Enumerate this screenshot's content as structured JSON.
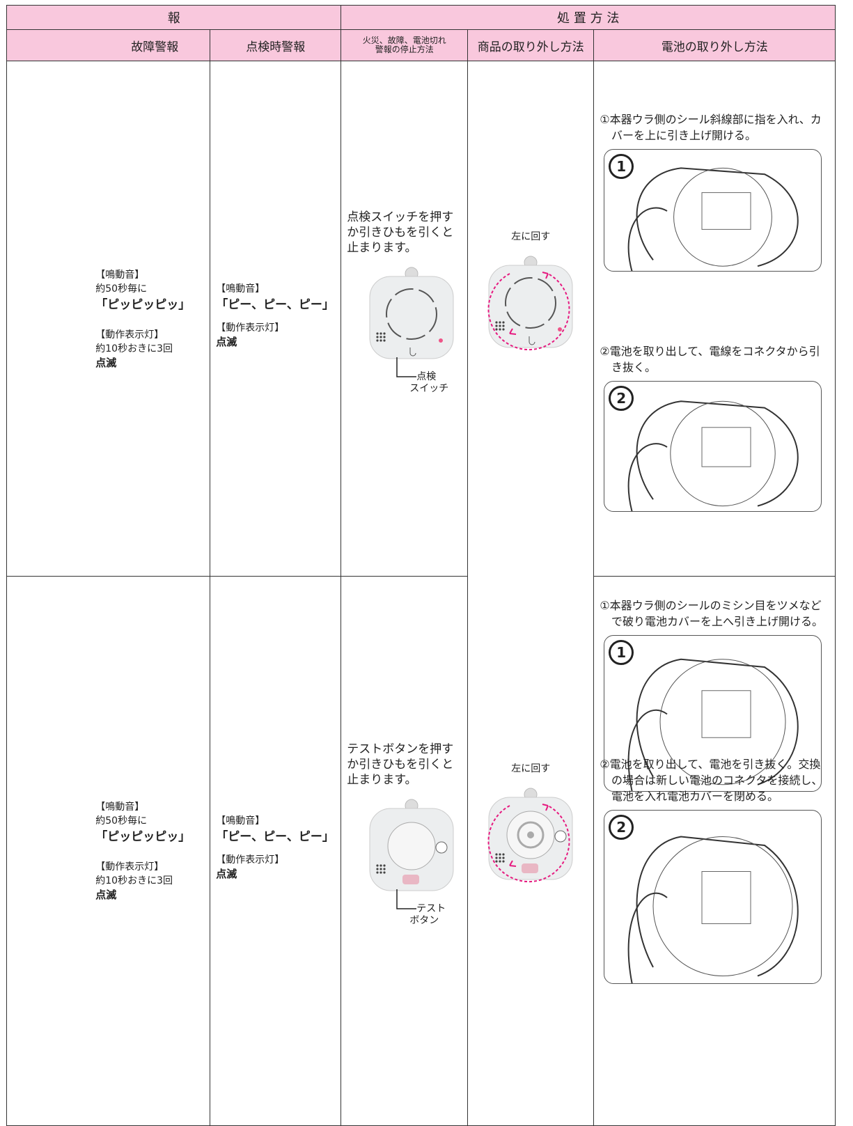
{
  "header": {
    "group_left": "報",
    "group_right": "処 置 方 法",
    "columns": [
      "故障警報",
      "点検時警報",
      [
        "火災、故障、電池切れ",
        "警報の停止方法"
      ],
      "商品の取り外し方法",
      "電池の取り外し方法"
    ]
  },
  "rows": [
    {
      "fault_alarm": {
        "sound_label": "【鳴動音】",
        "sound_interval": "約50秒毎に",
        "sound": "「ピッピッピッ」",
        "lamp_label": "【動作表示灯】",
        "lamp_interval": "約10秒おきに3回",
        "lamp": "点滅"
      },
      "inspection_alarm": {
        "sound_label": "【鳴動音】",
        "sound": "「ピー、ピー、ピー」",
        "lamp_label": "【動作表示灯】",
        "lamp": "点滅"
      },
      "stop_method": {
        "text": "点検スイッチを押すか引きひもを引くと止まります。",
        "callout": [
          "点検",
          "スイッチ"
        ]
      },
      "removal": "左に回す",
      "battery_steps": [
        {
          "text": "①本器ウラ側のシール斜線部に指を入れ、カバーを上に引き上げ開ける。",
          "badge": "1"
        },
        {
          "text": "②電池を取り出して、電線をコネクタから引き抜く。",
          "badge": "2"
        }
      ]
    },
    {
      "fault_alarm": {
        "sound_label": "【鳴動音】",
        "sound_interval": "約50秒毎に",
        "sound": "「ピッピッピッ」",
        "lamp_label": "【動作表示灯】",
        "lamp_interval": "約10秒おきに3回",
        "lamp": "点滅"
      },
      "inspection_alarm": {
        "sound_label": "【鳴動音】",
        "sound": "「ピー、ピー、ピー」",
        "lamp_label": "【動作表示灯】",
        "lamp": "点滅"
      },
      "stop_method": {
        "text": "テストボタンを押すか引きひもを引くと止まります。",
        "callout": [
          "テスト",
          "ボタン"
        ]
      },
      "removal": "左に回す",
      "battery_steps": [
        {
          "text": "①本器ウラ側のシールのミシン目をツメなどで破り電池カバーを上へ引き上げ開ける。",
          "badge": "1"
        },
        {
          "text": "②電池を取り出して、電池を引き抜く。交換の場合は新しい電池のコネクタを接続し、電池を入れ電池カバーを閉める。",
          "badge": "2"
        }
      ]
    }
  ]
}
